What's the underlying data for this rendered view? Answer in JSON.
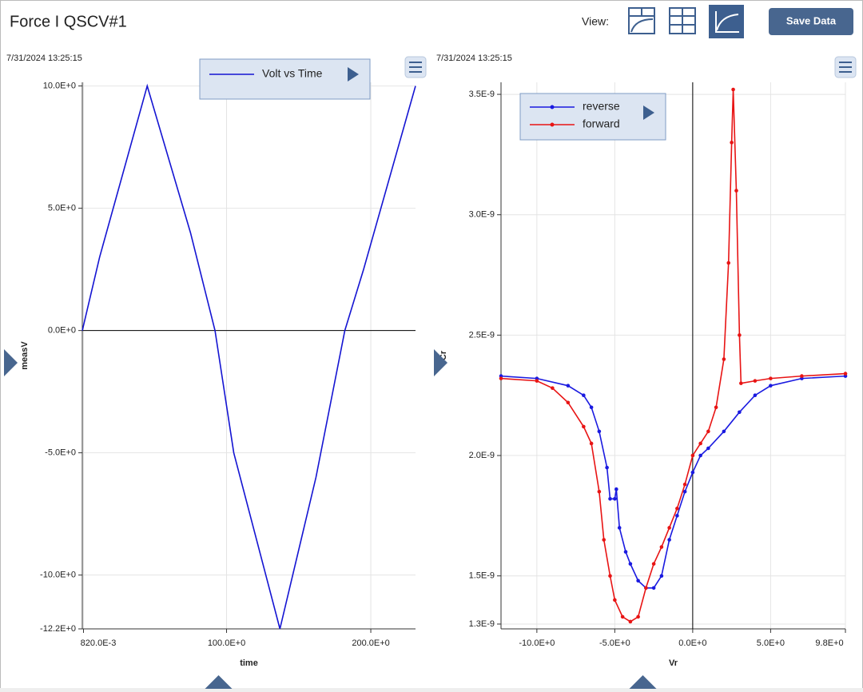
{
  "header": {
    "title": "Force I QSCV#1",
    "view_label": "View:",
    "save_button": "Save Data"
  },
  "chart_data": [
    {
      "type": "line",
      "timestamp": "7/31/2024 13:25:15",
      "x_label": "time",
      "y_label": "measV",
      "x": [
        0,
        12,
        45,
        75,
        92,
        105,
        137,
        162,
        182,
        195,
        231
      ],
      "series": [
        {
          "name": "Volt vs Time",
          "color": "#1414d2",
          "values": [
            0,
            3,
            10,
            4,
            0,
            -5,
            -12.2,
            -6,
            0,
            2.5,
            10
          ]
        }
      ],
      "xlim": [
        0,
        231
      ],
      "ylim": [
        -12.2,
        10.15
      ],
      "xticks": [
        {
          "value": 0.82,
          "label": "820.0E-3"
        },
        {
          "value": 100,
          "label": "100.0E+0"
        },
        {
          "value": 200,
          "label": "200.0E+0"
        }
      ],
      "yticks": [
        {
          "value": 10,
          "label": "10.0E+0"
        },
        {
          "value": 5,
          "label": "5.0E+0"
        },
        {
          "value": 0,
          "label": "0.0E+0"
        },
        {
          "value": -5,
          "label": "-5.0E+0"
        },
        {
          "value": -10,
          "label": "-10.0E+0"
        },
        {
          "value": -12.2,
          "label": "-12.2E+0"
        }
      ],
      "grid": true,
      "markers": false
    },
    {
      "type": "line",
      "timestamp": "7/31/2024 13:25:15",
      "x_label": "Vr",
      "y_label": "Cr",
      "series": [
        {
          "name": "reverse",
          "color": "#1a1ae0",
          "x": [
            -12.3,
            -10,
            -8,
            -7,
            -6.5,
            -6,
            -5.5,
            -5.3,
            -5,
            -4.9,
            -4.7,
            -4.3,
            -4,
            -3.5,
            -3,
            -2.5,
            -2,
            -1.5,
            -1,
            -0.5,
            0,
            0.5,
            1,
            2,
            3,
            4,
            5,
            7,
            9.8
          ],
          "values": [
            2.33e-09,
            2.32e-09,
            2.29e-09,
            2.25e-09,
            2.2e-09,
            2.1e-09,
            1.95e-09,
            1.82e-09,
            1.82e-09,
            1.86e-09,
            1.7e-09,
            1.6e-09,
            1.55e-09,
            1.48e-09,
            1.45e-09,
            1.45e-09,
            1.5e-09,
            1.65e-09,
            1.75e-09,
            1.85e-09,
            1.93e-09,
            2e-09,
            2.03e-09,
            2.1e-09,
            2.18e-09,
            2.25e-09,
            2.29e-09,
            2.32e-09,
            2.33e-09
          ]
        },
        {
          "name": "forward",
          "color": "#e81414",
          "x": [
            -12.3,
            -10,
            -9,
            -8,
            -7,
            -6.5,
            -6,
            -5.7,
            -5.3,
            -5,
            -4.5,
            -4,
            -3.5,
            -3,
            -2.5,
            -2,
            -1.5,
            -1,
            -0.5,
            0,
            0.5,
            1,
            1.5,
            2,
            2.3,
            2.5,
            2.6,
            2.8,
            3,
            3.1,
            4,
            5,
            7,
            9.8
          ],
          "values": [
            2.32e-09,
            2.31e-09,
            2.28e-09,
            2.22e-09,
            2.12e-09,
            2.05e-09,
            1.85e-09,
            1.65e-09,
            1.5e-09,
            1.4e-09,
            1.33e-09,
            1.31e-09,
            1.33e-09,
            1.45e-09,
            1.55e-09,
            1.62e-09,
            1.7e-09,
            1.78e-09,
            1.88e-09,
            2e-09,
            2.05e-09,
            2.1e-09,
            2.2e-09,
            2.4e-09,
            2.8e-09,
            3.3e-09,
            3.52e-09,
            3.1e-09,
            2.5e-09,
            2.3e-09,
            2.31e-09,
            2.32e-09,
            2.33e-09,
            2.34e-09
          ]
        }
      ],
      "xlim": [
        -12.3,
        9.8
      ],
      "ylim": [
        1.28e-09,
        3.55e-09
      ],
      "xticks": [
        {
          "value": -10,
          "label": "-10.0E+0"
        },
        {
          "value": -5,
          "label": "-5.0E+0"
        },
        {
          "value": 0,
          "label": "0.0E+0"
        },
        {
          "value": 5,
          "label": "5.0E+0"
        },
        {
          "value": 9.8,
          "label": "9.8E+0"
        }
      ],
      "yticks": [
        {
          "value": 3.5e-09,
          "label": "3.5E-9"
        },
        {
          "value": 3e-09,
          "label": "3.0E-9"
        },
        {
          "value": 2.5e-09,
          "label": "2.5E-9"
        },
        {
          "value": 2e-09,
          "label": "2.0E-9"
        },
        {
          "value": 1.5e-09,
          "label": "1.5E-9"
        },
        {
          "value": 1.3e-09,
          "label": "1.3E-9"
        }
      ],
      "grid": true,
      "markers": true
    }
  ]
}
